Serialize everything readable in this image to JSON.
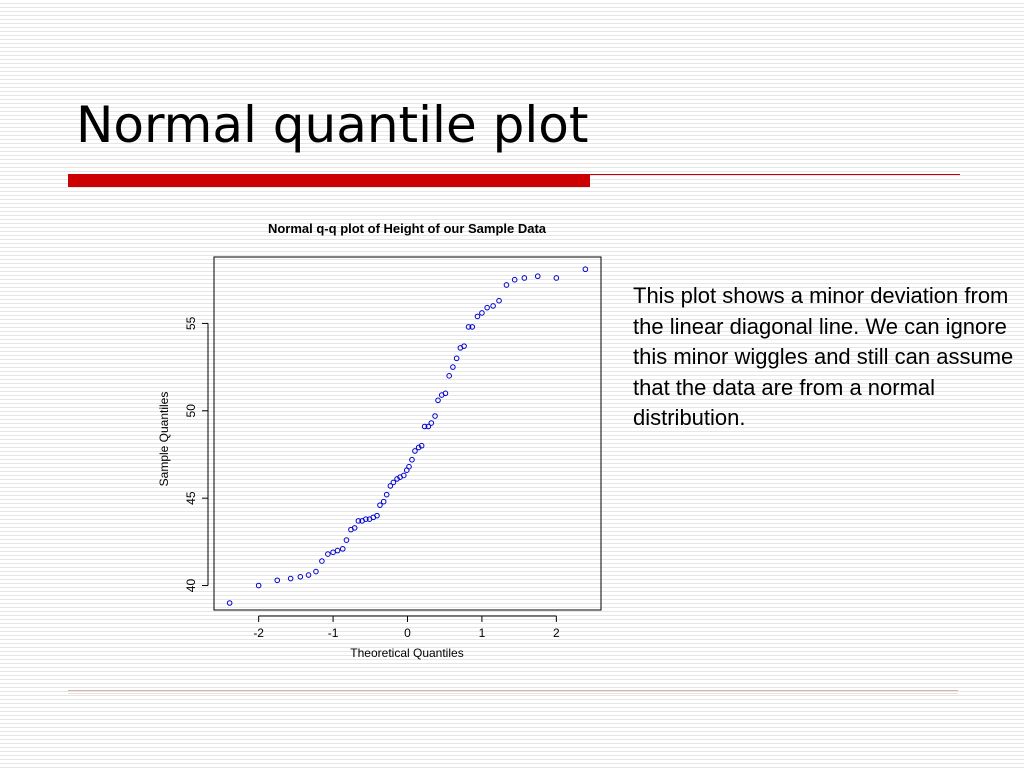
{
  "slide": {
    "title": "Normal quantile plot",
    "note": "This plot shows a minor deviation from the linear diagonal line. We can ignore this minor wiggles and still can assume that the data are from a normal distribution.",
    "accent_color": "#cc0000"
  },
  "chart_data": {
    "type": "scatter",
    "title": "Normal q-q plot of Height of our Sample Data",
    "xlabel": "Theoretical Quantiles",
    "ylabel": "Sample Quantiles",
    "xlim": [
      -2.6,
      2.6
    ],
    "ylim": [
      38.6,
      58.8
    ],
    "xticks": [
      -2,
      -1,
      0,
      1,
      2
    ],
    "xtick_labels": [
      "-2",
      "-1",
      "0",
      "1",
      "2"
    ],
    "yticks": [
      40,
      45,
      50,
      55
    ],
    "ytick_labels": [
      "40",
      "45",
      "50",
      "55"
    ],
    "grid": false,
    "marker": "open-circle",
    "marker_color": "#0000cc",
    "points": [
      [
        -2.39,
        39.0
      ],
      [
        -2.0,
        40.0
      ],
      [
        -1.75,
        40.3
      ],
      [
        -1.57,
        40.4
      ],
      [
        -1.44,
        40.5
      ],
      [
        -1.33,
        40.6
      ],
      [
        -1.23,
        40.8
      ],
      [
        -1.15,
        41.4
      ],
      [
        -1.07,
        41.8
      ],
      [
        -1.0,
        41.9
      ],
      [
        -0.94,
        42.0
      ],
      [
        -0.87,
        42.1
      ],
      [
        -0.82,
        42.6
      ],
      [
        -0.76,
        43.2
      ],
      [
        -0.71,
        43.3
      ],
      [
        -0.66,
        43.7
      ],
      [
        -0.61,
        43.7
      ],
      [
        -0.56,
        43.8
      ],
      [
        -0.51,
        43.8
      ],
      [
        -0.46,
        43.9
      ],
      [
        -0.41,
        44.0
      ],
      [
        -0.37,
        44.6
      ],
      [
        -0.32,
        44.8
      ],
      [
        -0.28,
        45.2
      ],
      [
        -0.23,
        45.7
      ],
      [
        -0.19,
        45.9
      ],
      [
        -0.14,
        46.1
      ],
      [
        -0.1,
        46.2
      ],
      [
        -0.05,
        46.3
      ],
      [
        -0.01,
        46.6
      ],
      [
        0.02,
        46.8
      ],
      [
        0.06,
        47.2
      ],
      [
        0.1,
        47.7
      ],
      [
        0.15,
        47.9
      ],
      [
        0.19,
        48.0
      ],
      [
        0.23,
        49.1
      ],
      [
        0.28,
        49.1
      ],
      [
        0.32,
        49.3
      ],
      [
        0.37,
        49.7
      ],
      [
        0.41,
        50.6
      ],
      [
        0.46,
        50.9
      ],
      [
        0.51,
        51.0
      ],
      [
        0.56,
        52.0
      ],
      [
        0.61,
        52.5
      ],
      [
        0.66,
        53.0
      ],
      [
        0.71,
        53.6
      ],
      [
        0.76,
        53.7
      ],
      [
        0.82,
        54.8
      ],
      [
        0.87,
        54.8
      ],
      [
        0.94,
        55.4
      ],
      [
        1.0,
        55.6
      ],
      [
        1.07,
        55.9
      ],
      [
        1.15,
        56.0
      ],
      [
        1.23,
        56.3
      ],
      [
        1.33,
        57.2
      ],
      [
        1.44,
        57.5
      ],
      [
        1.57,
        57.6
      ],
      [
        1.75,
        57.7
      ],
      [
        2.0,
        57.6
      ],
      [
        2.39,
        58.1
      ]
    ]
  }
}
